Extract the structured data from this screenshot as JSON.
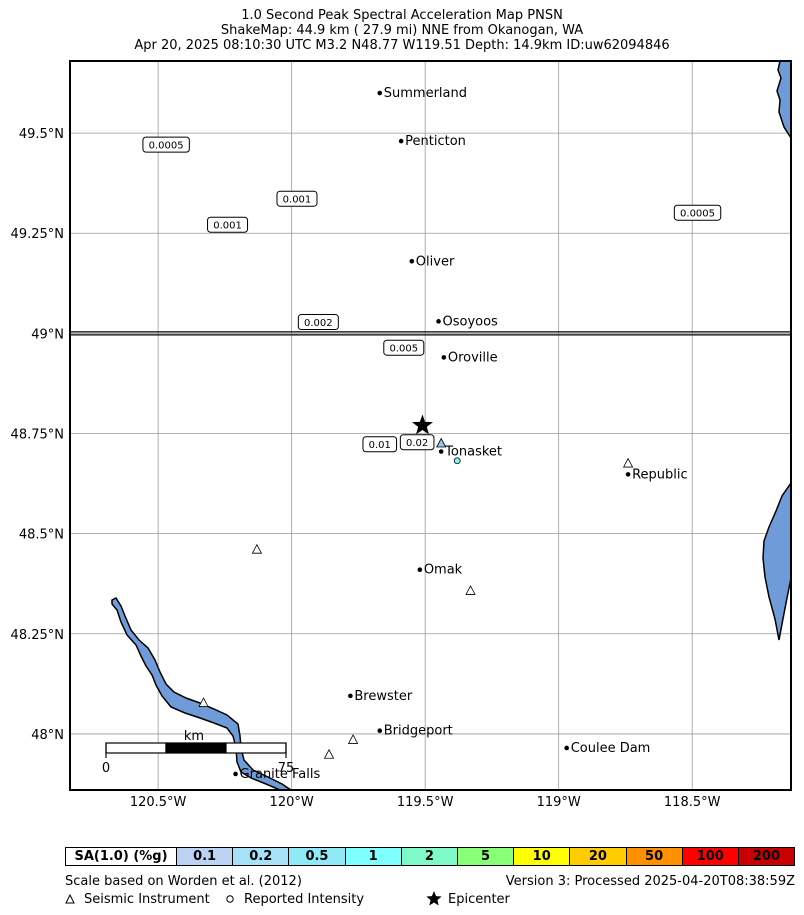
{
  "header": {
    "line1": "1.0 Second Peak Spectral Acceleration Map PNSN",
    "line2": "ShakeMap: 44.9 km (  27.9 mi) NNE from Okanogan, WA",
    "line3": "Apr 20, 2025 08:10:30 UTC M3.2 N48.77 W119.51 Depth: 14.9km ID:uw62094846"
  },
  "map": {
    "lon_range": [
      -120.83,
      -118.13
    ],
    "lat_range": [
      47.86,
      49.68
    ],
    "lat_ticks": [
      {
        "value": 49.5,
        "label": "49.5°N"
      },
      {
        "value": 49.25,
        "label": "49.25°N"
      },
      {
        "value": 49.0,
        "label": "49°N"
      },
      {
        "value": 48.75,
        "label": "48.75°N"
      },
      {
        "value": 48.5,
        "label": "48.5°N"
      },
      {
        "value": 48.25,
        "label": "48.25°N"
      },
      {
        "value": 48.0,
        "label": "48°N"
      }
    ],
    "lon_ticks": [
      {
        "value": -120.5,
        "label": "120.5°W"
      },
      {
        "value": -120.0,
        "label": "120°W"
      },
      {
        "value": -119.5,
        "label": "119.5°W"
      },
      {
        "value": -119.0,
        "label": "119°W"
      },
      {
        "value": -118.5,
        "label": "118.5°W"
      }
    ],
    "border_lat": 49.0,
    "cities": [
      {
        "name": "Summerland",
        "lon": -119.67,
        "lat": 49.6
      },
      {
        "name": "Penticton",
        "lon": -119.59,
        "lat": 49.48
      },
      {
        "name": "Oliver",
        "lon": -119.55,
        "lat": 49.18
      },
      {
        "name": "Osoyoos",
        "lon": -119.45,
        "lat": 49.03
      },
      {
        "name": "Oroville",
        "lon": -119.43,
        "lat": 48.94
      },
      {
        "name": "Tonasket",
        "lon": -119.44,
        "lat": 48.705
      },
      {
        "name": "Republic",
        "lon": -118.74,
        "lat": 48.648
      },
      {
        "name": "Omak",
        "lon": -119.52,
        "lat": 48.41
      },
      {
        "name": "Brewster",
        "lon": -119.78,
        "lat": 48.095
      },
      {
        "name": "Bridgeport",
        "lon": -119.67,
        "lat": 48.008
      },
      {
        "name": "Coulee Dam",
        "lon": -118.97,
        "lat": 47.965
      },
      {
        "name": "Granite Falls",
        "lon": -120.21,
        "lat": 47.9
      }
    ],
    "contour_labels": [
      {
        "text": "0.0005",
        "lon": -120.47,
        "lat": 49.47
      },
      {
        "text": "0.001",
        "lon": -120.24,
        "lat": 49.27
      },
      {
        "text": "0.001",
        "lon": -119.98,
        "lat": 49.335
      },
      {
        "text": "0.0005",
        "lon": -118.48,
        "lat": 49.3
      },
      {
        "text": "0.002",
        "lon": -119.9,
        "lat": 49.027
      },
      {
        "text": "0.005",
        "lon": -119.58,
        "lat": 48.963
      },
      {
        "text": "0.01",
        "lon": -119.67,
        "lat": 48.722
      },
      {
        "text": "0.02",
        "lon": -119.53,
        "lat": 48.727
      }
    ],
    "stations": [
      {
        "lon": -119.44,
        "lat": 48.725,
        "filled": true
      },
      {
        "lon": -118.74,
        "lat": 48.675,
        "filled": false
      },
      {
        "lon": -120.13,
        "lat": 48.46,
        "filled": false
      },
      {
        "lon": -119.33,
        "lat": 48.357,
        "filled": false
      },
      {
        "lon": -120.33,
        "lat": 48.077,
        "filled": false
      },
      {
        "lon": -119.77,
        "lat": 47.985,
        "filled": false
      },
      {
        "lon": -119.86,
        "lat": 47.948,
        "filled": false
      }
    ],
    "intensity_points": [
      {
        "lon": -119.38,
        "lat": 48.682,
        "color": "#7ff3f3"
      }
    ],
    "epicenter": {
      "lon": -119.51,
      "lat": 48.77
    },
    "scale_bar": {
      "unit": "km",
      "start": "0",
      "end": "75"
    },
    "colors": {
      "water": "#6f9bd8",
      "grid": "#9a9a9a",
      "station": "#ffffff",
      "station_filled": "#8ec8ee"
    }
  },
  "legend": {
    "label": "SA(1.0) (%g)",
    "bins": [
      {
        "label": "0.1",
        "color": "#bcd2f2"
      },
      {
        "label": "0.2",
        "color": "#a6e1f7"
      },
      {
        "label": "0.5",
        "color": "#8fe9f6"
      },
      {
        "label": "1",
        "color": "#80ffff"
      },
      {
        "label": "2",
        "color": "#7ff9c8"
      },
      {
        "label": "5",
        "color": "#88ff76"
      },
      {
        "label": "10",
        "color": "#ffff00"
      },
      {
        "label": "20",
        "color": "#ffcc00"
      },
      {
        "label": "50",
        "color": "#ff9100"
      },
      {
        "label": "100",
        "color": "#ff0000"
      },
      {
        "label": "200",
        "color": "#c80000"
      }
    ]
  },
  "footer": {
    "reference": "Scale based on Worden et al. (2012)",
    "version": "Version 3: Processed 2025-04-20T08:38:59Z",
    "key_station": "Seismic Instrument",
    "key_intensity": "Reported Intensity",
    "key_epicenter": "Epicenter"
  }
}
